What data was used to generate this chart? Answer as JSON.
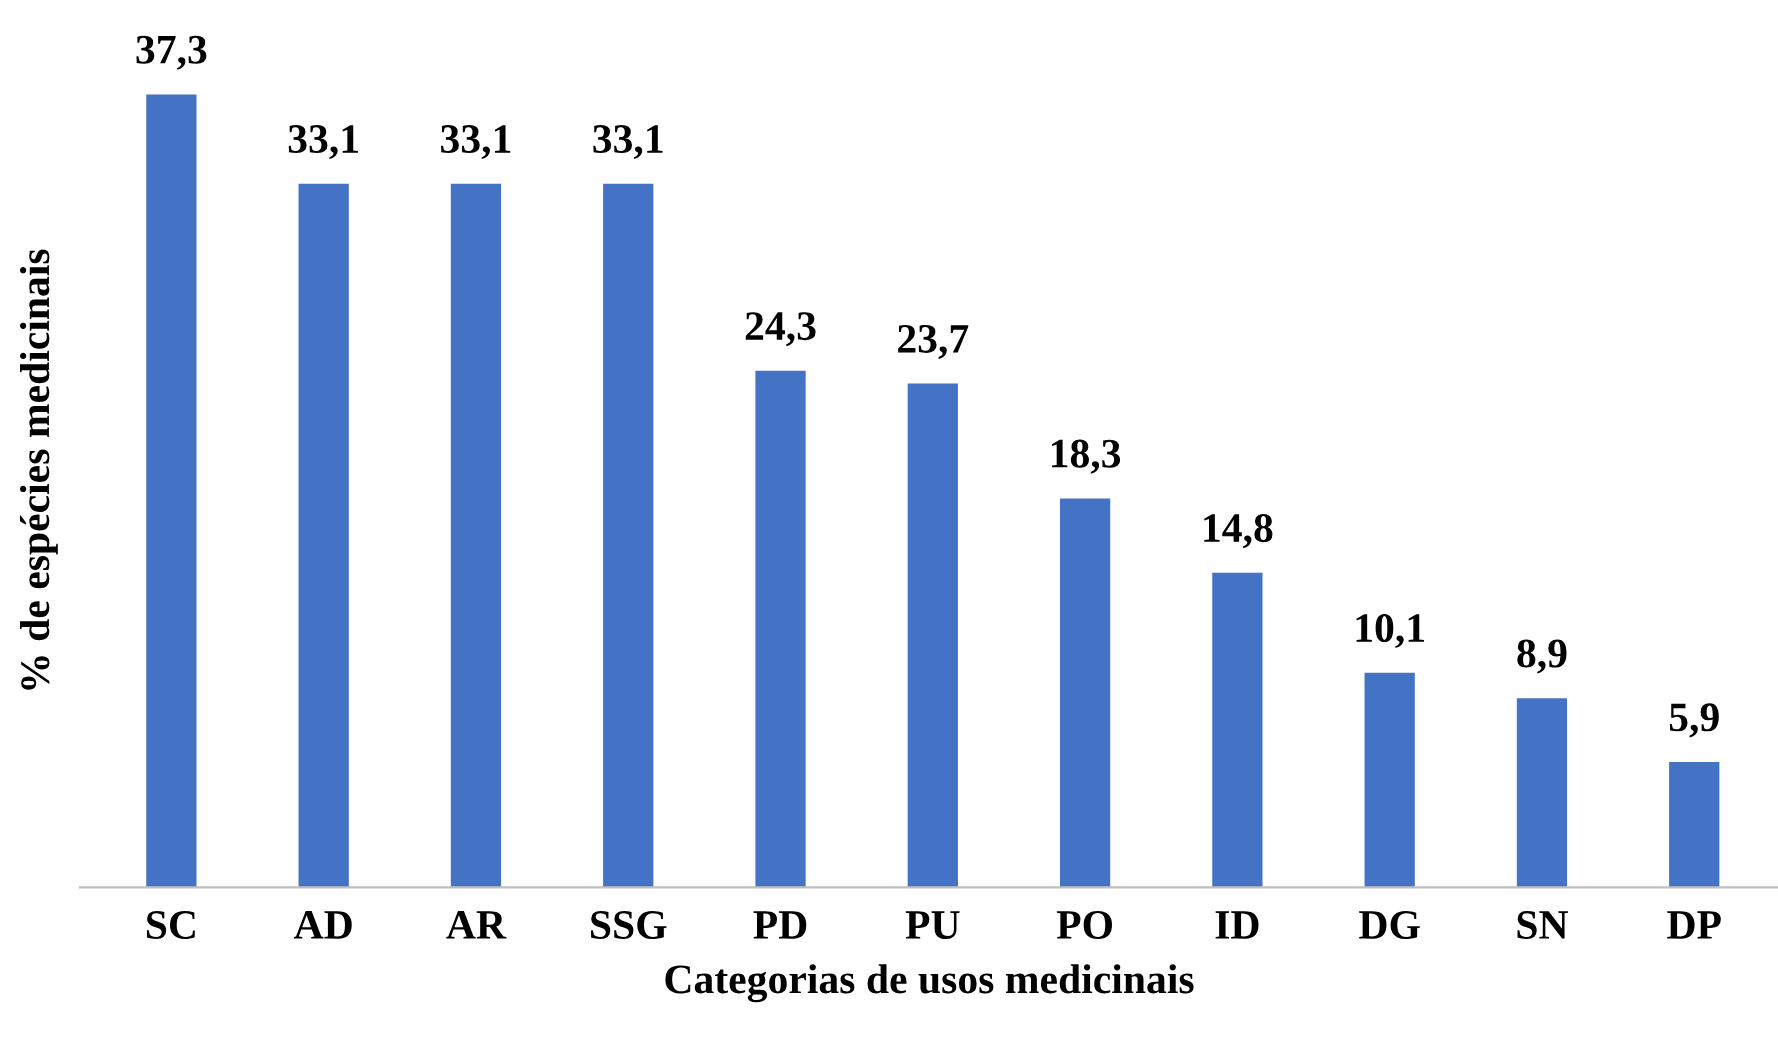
{
  "chart_data": {
    "type": "bar",
    "xlabel": "Categorias de usos medicinais",
    "ylabel": "% de espécies medicinais",
    "categories": [
      "SC",
      "AD",
      "AR",
      "SSG",
      "PD",
      "PU",
      "PO",
      "ID",
      "DG",
      "SN",
      "DP"
    ],
    "values": [
      37.3,
      33.1,
      33.1,
      33.1,
      24.3,
      23.7,
      18.3,
      14.8,
      10.1,
      8.9,
      5.9
    ],
    "value_labels": [
      "37,3",
      "33,1",
      "33,1",
      "33,1",
      "24,3",
      "23,7",
      "18,3",
      "14,8",
      "10,1",
      "8,9",
      "5,9"
    ],
    "color": "#4472c4",
    "grid": false,
    "legend": false
  }
}
